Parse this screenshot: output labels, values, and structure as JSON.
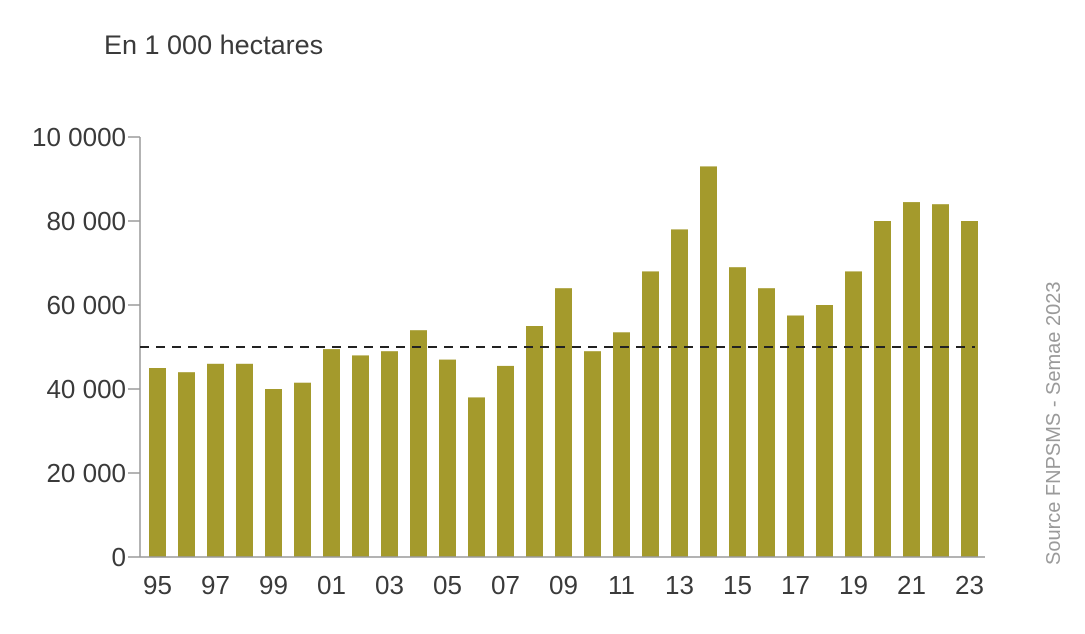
{
  "chart_data": {
    "type": "bar",
    "title": "",
    "unit_label": "En 1 000 hectares",
    "source": "Source FNPSMS - Semae 2023",
    "categories": [
      "95",
      "96",
      "97",
      "98",
      "99",
      "00",
      "01",
      "02",
      "03",
      "04",
      "05",
      "06",
      "07",
      "08",
      "09",
      "10",
      "11",
      "12",
      "13",
      "14",
      "15",
      "16",
      "17",
      "18",
      "19",
      "20",
      "21",
      "22",
      "23"
    ],
    "x_tick_labels": [
      "95",
      "97",
      "99",
      "01",
      "03",
      "05",
      "07",
      "09",
      "11",
      "13",
      "15",
      "17",
      "19",
      "21",
      "23"
    ],
    "y_tick_labels": [
      "0",
      "20 000",
      "40 000",
      "60 000",
      "80 000",
      "10 0000"
    ],
    "y_ticks": [
      0,
      20000,
      40000,
      60000,
      80000,
      100000
    ],
    "values": [
      45000,
      44000,
      46000,
      46000,
      40000,
      41500,
      49500,
      48000,
      49000,
      54000,
      47000,
      38000,
      45500,
      55000,
      64000,
      49000,
      53500,
      68000,
      78000,
      93000,
      69000,
      64000,
      57500,
      60000,
      68000,
      80000,
      84500,
      84000,
      80000
    ],
    "reference_line": 50000,
    "ylim": [
      0,
      100000
    ],
    "grid": false,
    "colors": {
      "bar": "#a49a2c",
      "axis": "#9a9a9a",
      "text": "#3a3a3a",
      "source_text": "#9a9a9a",
      "reference_line": "#222222"
    }
  }
}
